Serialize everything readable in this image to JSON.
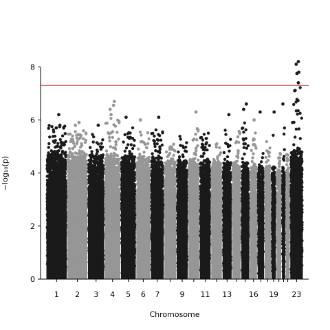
{
  "chart_data": {
    "type": "scatter",
    "subtype": "manhattan",
    "title": "",
    "xlabel": "Chromosome",
    "ylabel": "−log₁₀(p)",
    "ylim": [
      0,
      8.5
    ],
    "yticks": [
      "0",
      "2",
      "4",
      "6",
      "8"
    ],
    "ytick_values": [
      0,
      2,
      4,
      6,
      8
    ],
    "xtick_labels": [
      "1",
      "2",
      "3",
      "4",
      "5",
      "6",
      "7",
      "9",
      "11",
      "13",
      "16",
      "19",
      "23"
    ],
    "xtick_chromosomes": [
      1,
      2,
      3,
      4,
      5,
      6,
      7,
      9,
      11,
      13,
      16,
      19,
      23
    ],
    "significance_threshold": 7.3,
    "threshold_color": "#c0392b",
    "colors": {
      "odd": "#1a1a1a",
      "even": "#969696"
    },
    "grid": false,
    "legend": "none",
    "chromosomes": [
      {
        "chr": 1,
        "length": 248,
        "max_peak": 6.2,
        "typical_top": 4.9
      },
      {
        "chr": 2,
        "length": 242,
        "max_peak": 5.9,
        "typical_top": 4.9
      },
      {
        "chr": 3,
        "length": 198,
        "max_peak": 5.8,
        "typical_top": 4.8
      },
      {
        "chr": 4,
        "length": 190,
        "max_peak": 6.7,
        "typical_top": 4.8
      },
      {
        "chr": 5,
        "length": 181,
        "max_peak": 6.1,
        "typical_top": 4.8
      },
      {
        "chr": 6,
        "length": 171,
        "max_peak": 6.0,
        "typical_top": 4.7
      },
      {
        "chr": 7,
        "length": 159,
        "max_peak": 6.1,
        "typical_top": 4.7
      },
      {
        "chr": 8,
        "length": 145,
        "max_peak": 5.3,
        "typical_top": 4.6
      },
      {
        "chr": 9,
        "length": 138,
        "max_peak": 5.8,
        "typical_top": 4.6
      },
      {
        "chr": 10,
        "length": 134,
        "max_peak": 6.3,
        "typical_top": 4.6
      },
      {
        "chr": 11,
        "length": 135,
        "max_peak": 5.9,
        "typical_top": 4.6
      },
      {
        "chr": 12,
        "length": 133,
        "max_peak": 5.5,
        "typical_top": 4.6
      },
      {
        "chr": 13,
        "length": 114,
        "max_peak": 6.2,
        "typical_top": 4.5
      },
      {
        "chr": 14,
        "length": 107,
        "max_peak": 6.2,
        "typical_top": 4.5
      },
      {
        "chr": 15,
        "length": 102,
        "max_peak": 6.6,
        "typical_top": 4.5
      },
      {
        "chr": 16,
        "length": 90,
        "max_peak": 6.0,
        "typical_top": 4.4
      },
      {
        "chr": 17,
        "length": 83,
        "max_peak": 6.3,
        "typical_top": 4.4
      },
      {
        "chr": 18,
        "length": 80,
        "max_peak": 5.6,
        "typical_top": 4.4
      },
      {
        "chr": 19,
        "length": 59,
        "max_peak": 6.3,
        "typical_top": 4.3
      },
      {
        "chr": 20,
        "length": 64,
        "max_peak": 5.0,
        "typical_top": 4.3
      },
      {
        "chr": 21,
        "length": 47,
        "max_peak": 6.6,
        "typical_top": 4.3
      },
      {
        "chr": 22,
        "length": 51,
        "max_peak": 5.0,
        "typical_top": 4.3
      },
      {
        "chr": 23,
        "length": 156,
        "max_peak": 8.2,
        "typical_top": 5.0
      }
    ],
    "notable_points": [
      {
        "chr": 23,
        "y": 8.2
      },
      {
        "chr": 23,
        "y": 8.1
      },
      {
        "chr": 23,
        "y": 7.8
      },
      {
        "chr": 23,
        "y": 7.75
      },
      {
        "chr": 23,
        "y": 7.4
      },
      {
        "chr": 23,
        "y": 7.1
      },
      {
        "chr": 4,
        "y": 6.7
      },
      {
        "chr": 4,
        "y": 6.55
      },
      {
        "chr": 4,
        "y": 6.4
      },
      {
        "chr": 4,
        "y": 6.2
      },
      {
        "chr": 15,
        "y": 6.6
      },
      {
        "chr": 15,
        "y": 6.4
      },
      {
        "chr": 21,
        "y": 6.6
      },
      {
        "chr": 10,
        "y": 6.3
      },
      {
        "chr": 1,
        "y": 6.2
      },
      {
        "chr": 5,
        "y": 6.1
      },
      {
        "chr": 7,
        "y": 6.1
      },
      {
        "chr": 6,
        "y": 6.0
      },
      {
        "chr": 2,
        "y": 5.9
      },
      {
        "chr": 2,
        "y": 5.8
      },
      {
        "chr": 3,
        "y": 5.8
      },
      {
        "chr": 1,
        "y": 5.8
      },
      {
        "chr": 1,
        "y": 5.7
      },
      {
        "chr": 13,
        "y": 6.2
      },
      {
        "chr": 16,
        "y": 6.0
      },
      {
        "chr": 19,
        "y": 6.3
      },
      {
        "chr": 17,
        "y": 6.3
      }
    ]
  }
}
